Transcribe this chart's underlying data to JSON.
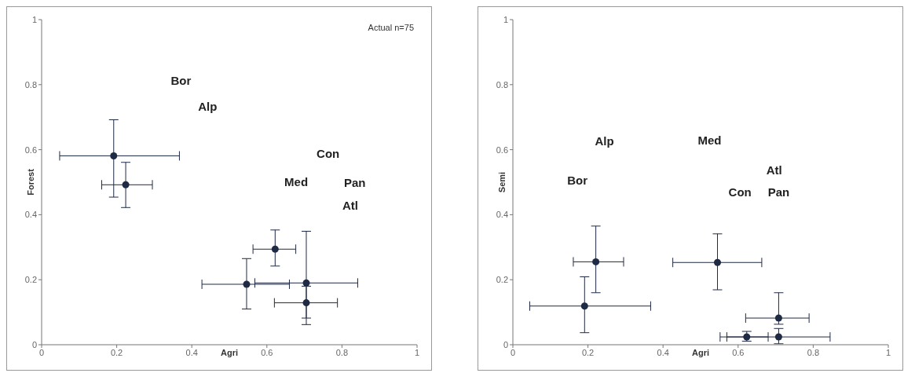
{
  "chart_data": [
    {
      "type": "scatter",
      "xlabel": "Agri",
      "ylabel": "Forest",
      "xlim": [
        0,
        1
      ],
      "ylim": [
        0,
        1
      ],
      "xticks": [
        0,
        0.2,
        0.4,
        0.6,
        0.8,
        1
      ],
      "yticks": [
        0,
        0.2,
        0.4,
        0.6,
        0.8,
        1
      ],
      "grid": false,
      "legend": false,
      "marker": "circle",
      "series": [
        {
          "color": "#1f2a44",
          "x": [
            0.192,
            0.224,
            0.622,
            0.546,
            0.705,
            0.705
          ],
          "values": [
            0.581,
            0.492,
            0.294,
            0.186,
            0.19,
            0.129
          ],
          "errors": [
            [
              0.454,
              0.692
            ],
            [
              0.422,
              0.561
            ],
            [
              0.242,
              0.353
            ],
            [
              0.11,
              0.265
            ],
            [
              0.062,
              0.349
            ],
            [
              0.082,
              0.18
            ]
          ],
          "xerrors": [
            [
              0.048,
              0.367
            ],
            [
              0.16,
              0.295
            ],
            [
              0.563,
              0.677
            ],
            [
              0.427,
              0.66
            ],
            [
              0.568,
              0.842
            ],
            [
              0.62,
              0.788
            ]
          ]
        }
      ],
      "annotations": [
        "Actual n=75",
        "Bor",
        "Alp",
        "Con",
        "Med",
        "Pan",
        "Atl"
      ]
    },
    {
      "type": "scatter",
      "xlabel": "Agri",
      "ylabel": "Semi",
      "xlim": [
        0,
        1
      ],
      "ylim": [
        0,
        1
      ],
      "xticks": [
        0,
        0.2,
        0.4,
        0.6,
        0.8,
        1
      ],
      "yticks": [
        0,
        0.2,
        0.4,
        0.6,
        0.8,
        1
      ],
      "grid": false,
      "legend": false,
      "marker": "circle",
      "series": [
        {
          "color": "#1f2a44",
          "x": [
            0.191,
            0.221,
            0.545,
            0.623,
            0.708,
            0.708
          ],
          "values": [
            0.119,
            0.255,
            0.253,
            0.024,
            0.082,
            0.024
          ],
          "errors": [
            [
              0.037,
              0.209
            ],
            [
              0.16,
              0.365
            ],
            [
              0.169,
              0.341
            ],
            [
              0.011,
              0.041
            ],
            [
              0.063,
              0.16
            ],
            [
              0.003,
              0.05
            ]
          ],
          "xerrors": [
            [
              0.045,
              0.367
            ],
            [
              0.161,
              0.295
            ],
            [
              0.426,
              0.663
            ],
            [
              0.552,
              0.68
            ],
            [
              0.62,
              0.789
            ],
            [
              0.57,
              0.845
            ]
          ]
        }
      ],
      "annotations": [
        "Alp",
        "Med",
        "Atl",
        "Bor",
        "Con",
        "Pan"
      ]
    }
  ]
}
